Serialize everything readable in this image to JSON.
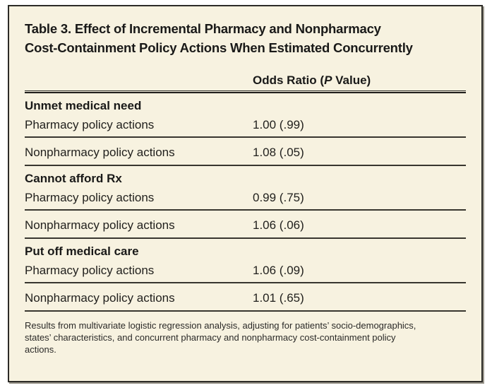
{
  "table": {
    "title_lines": [
      "Table 3. Effect of Incremental Pharmacy and Nonpharmacy",
      "Cost-Containment Policy Actions When Estimated Concurrently"
    ],
    "column_header": {
      "pre": "Odds Ratio (",
      "italic": "P",
      "post": " Value)"
    },
    "sections": [
      {
        "heading": "Unmet medical need",
        "rows": [
          {
            "label": "Pharmacy policy actions",
            "value": "1.00 (.99)"
          },
          {
            "label": "Nonpharmacy policy actions",
            "value": "1.08 (.05)"
          }
        ]
      },
      {
        "heading": "Cannot afford Rx",
        "rows": [
          {
            "label": "Pharmacy policy actions",
            "value": "0.99 (.75)"
          },
          {
            "label": "Nonpharmacy policy actions",
            "value": "1.06 (.06)"
          }
        ]
      },
      {
        "heading": "Put off medical care",
        "rows": [
          {
            "label": "Pharmacy policy actions",
            "value": "1.06 (.09)"
          },
          {
            "label": "Nonpharmacy policy actions",
            "value": "1.01 (.65)"
          }
        ]
      }
    ],
    "footnote_lines": [
      "Results from multivariate logistic regression analysis, adjusting for patients’ socio-demographics,",
      "states’ characteristics, and concurrent pharmacy and nonpharmacy cost-containment policy",
      "actions."
    ]
  },
  "colors": {
    "card_background": "#f7f2e0",
    "border": "#2c2b27",
    "text": "#191918"
  }
}
